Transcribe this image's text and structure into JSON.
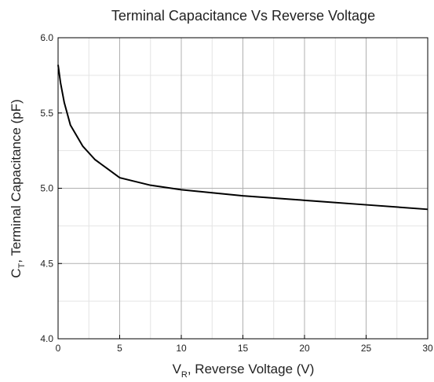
{
  "chart_data": {
    "type": "line",
    "title": "Terminal Capacitance Vs Reverse Voltage",
    "xlabel": [
      "V",
      "R",
      ", Reverse Voltage (V)"
    ],
    "ylabel": [
      "C",
      "T",
      ", Terminal Capacitance (pF)"
    ],
    "xlim": [
      0,
      30
    ],
    "xticks": [
      0,
      5,
      10,
      15,
      20,
      25,
      30
    ],
    "ylim": [
      4,
      6
    ],
    "yticks": [
      {
        "value": 4,
        "label": "4.0"
      },
      4.5,
      {
        "value": 5,
        "label": "5.0"
      },
      5.5,
      {
        "value": 6,
        "label": "6.0"
      }
    ],
    "grid": true,
    "minor_grid": true,
    "series": [
      {
        "color": "#000000",
        "x": [
          0,
          0.2,
          0.5,
          1,
          2,
          3,
          4,
          5,
          6,
          7.5,
          10,
          12.5,
          15,
          20,
          25,
          30
        ],
        "values": [
          5.82,
          5.7,
          5.57,
          5.42,
          5.28,
          5.19,
          5.13,
          5.07,
          5.05,
          5.02,
          4.99,
          4.97,
          4.95,
          4.92,
          4.89,
          4.86
        ]
      }
    ]
  }
}
